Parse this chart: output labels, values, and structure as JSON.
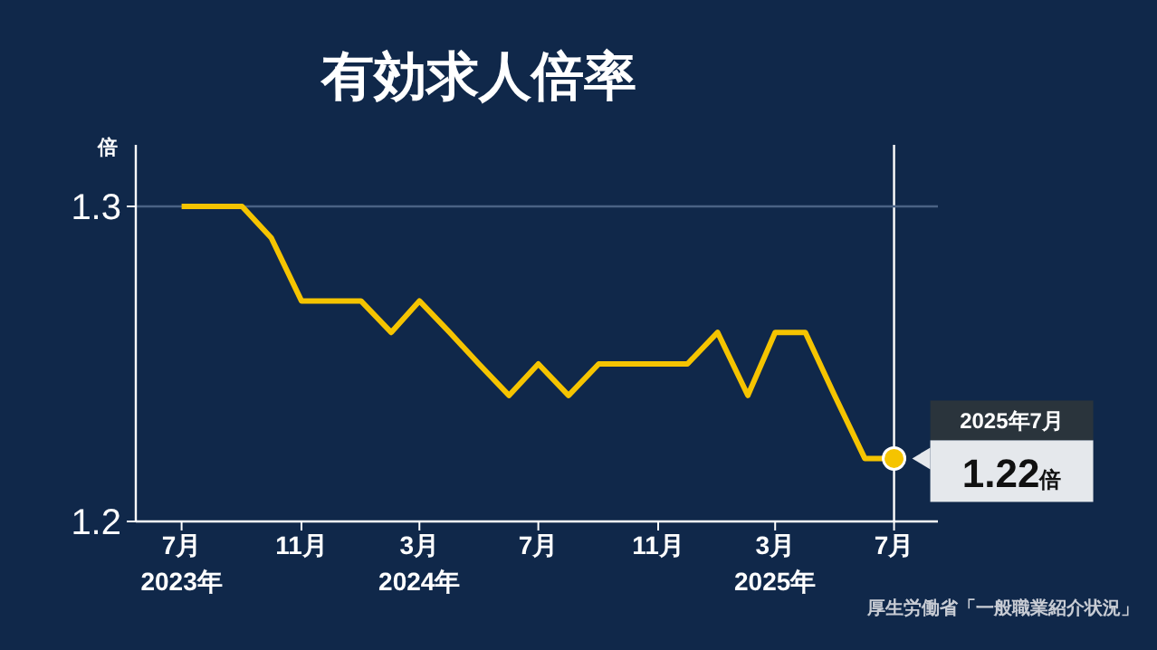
{
  "chart_data": {
    "type": "line",
    "title": "有効求人倍率",
    "ylabel": "倍",
    "x": [
      "2023-07",
      "2023-08",
      "2023-09",
      "2023-10",
      "2023-11",
      "2023-12",
      "2024-01",
      "2024-02",
      "2024-03",
      "2024-04",
      "2024-05",
      "2024-06",
      "2024-07",
      "2024-08",
      "2024-09",
      "2024-10",
      "2024-11",
      "2024-12",
      "2025-01",
      "2025-02",
      "2025-03",
      "2025-04",
      "2025-05",
      "2025-06",
      "2025-07"
    ],
    "series": [
      {
        "color": "#f5c400",
        "values": [
          1.3,
          1.3,
          1.3,
          1.29,
          1.27,
          1.27,
          1.27,
          1.26,
          1.27,
          1.26,
          1.25,
          1.24,
          1.25,
          1.24,
          1.25,
          1.25,
          1.25,
          1.25,
          1.26,
          1.24,
          1.26,
          1.26,
          1.24,
          1.22,
          1.22
        ]
      }
    ],
    "xlim": [
      "2023-05-15",
      "2025-08-15"
    ],
    "xticks": [
      {
        "value": "2023-07",
        "label": "7月\n2023年"
      },
      {
        "value": "2023-11",
        "label": "11月"
      },
      {
        "value": "2024-03",
        "label": "3月\n2024年"
      },
      {
        "value": "2024-07",
        "label": "7月"
      },
      {
        "value": "2024-11",
        "label": "11月"
      },
      {
        "value": "2025-03",
        "label": "3月\n2025年"
      },
      {
        "value": "2025-07",
        "label": "7月"
      }
    ],
    "ylim": [
      1.2,
      1.3
    ],
    "yticks": [
      1.2,
      1.3
    ],
    "marker": "none",
    "line_style": "solid",
    "ref_lines": [
      {
        "axis": "x",
        "value": "2025-07",
        "color": "#ffffff"
      },
      {
        "axis": "y",
        "value": 1.3,
        "color": "#4a6284"
      }
    ],
    "annotations": [
      "2025年7月",
      "1.22倍",
      "厚生労働省「一般職業紹介状況」"
    ]
  }
}
